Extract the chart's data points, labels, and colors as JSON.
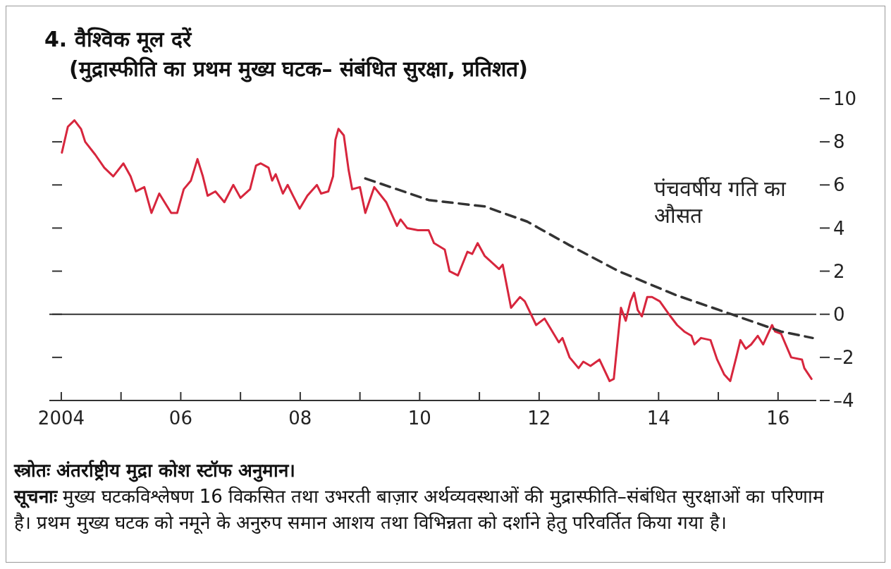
{
  "chart_data": {
    "type": "line",
    "title": "4. वैश्विक मूल दरें",
    "subtitle": "(मुद्रास्फीति का प्रथम मुख्य घटक– संबंधित सुरक्षा, प्रतिशत)",
    "annotations": [
      "स्त्रोतः अंतर्राष्ट्रीय मुद्रा कोश स्टॉफ अनुमान।",
      "सूचनाः मुख्य घटकविश्लेषण 16 विकसित तथा उभरती बाज़ार अर्थव्यवस्थाओं की मुद्रास्फीति–संबंधित सुरक्षाओं का परिणाम है। प्रथम मुख्य घटक को नमूने के अनुरुप समान आशय तथा विभिन्नता को दर्शाने हेतु परिवर्तित किया गया है।"
    ],
    "xlim": [
      2003.8,
      2016.64
    ],
    "xticks": [
      {
        "value": 2004,
        "label": "2004"
      },
      {
        "value": 2005,
        "label": null
      },
      {
        "value": 2006,
        "label": "06"
      },
      {
        "value": 2007,
        "label": null
      },
      {
        "value": 2008,
        "label": "08"
      },
      {
        "value": 2009,
        "label": null
      },
      {
        "value": 2010,
        "label": "10"
      },
      {
        "value": 2011,
        "label": null
      },
      {
        "value": 2012,
        "label": "12"
      },
      {
        "value": 2013,
        "label": null
      },
      {
        "value": 2014,
        "label": "14"
      },
      {
        "value": 2015,
        "label": null
      },
      {
        "value": 2016,
        "label": "16"
      }
    ],
    "ylim": [
      -4,
      10
    ],
    "yticks": [
      10,
      8,
      6,
      4,
      2,
      0,
      {
        "value": -2,
        "label": "–2"
      },
      {
        "value": -4,
        "label": "–4"
      }
    ],
    "ref_lines": [
      {
        "axis": "y",
        "value": 0,
        "color": "#333333"
      }
    ],
    "series": [
      {
        "color": "#d7263d",
        "line_style": "solid",
        "x": [
          2004.01,
          2004.11,
          2004.22,
          2004.33,
          2004.4,
          2004.57,
          2004.72,
          2004.87,
          2005.04,
          2005.16,
          2005.25,
          2005.39,
          2005.51,
          2005.64,
          2005.84,
          2005.94,
          2006.05,
          2006.17,
          2006.28,
          2006.37,
          2006.45,
          2006.58,
          2006.73,
          2006.88,
          2007.0,
          2007.16,
          2007.26,
          2007.34,
          2007.47,
          2007.53,
          2007.59,
          2007.71,
          2007.79,
          2007.88,
          2007.99,
          2008.12,
          2008.28,
          2008.35,
          2008.47,
          2008.55,
          2008.59,
          2008.64,
          2008.73,
          2008.81,
          2008.87,
          2009.0,
          2009.09,
          2009.24,
          2009.44,
          2009.62,
          2009.68,
          2009.79,
          2009.97,
          2010.15,
          2010.24,
          2010.42,
          2010.5,
          2010.64,
          2010.8,
          2010.88,
          2010.97,
          2011.09,
          2011.33,
          2011.39,
          2011.53,
          2011.68,
          2011.76,
          2011.95,
          2012.09,
          2012.33,
          2012.39,
          2012.51,
          2012.66,
          2012.74,
          2012.86,
          2013.01,
          2013.18,
          2013.25,
          2013.37,
          2013.45,
          2013.53,
          2013.59,
          2013.65,
          2013.72,
          2013.81,
          2013.89,
          2014.02,
          2014.2,
          2014.31,
          2014.43,
          2014.55,
          2014.6,
          2014.71,
          2014.87,
          2014.98,
          2015.1,
          2015.2,
          2015.3,
          2015.37,
          2015.46,
          2015.55,
          2015.66,
          2015.75,
          2015.9,
          2015.95,
          2016.05,
          2016.22,
          2016.4,
          2016.44,
          2016.56
        ],
        "values": [
          7.5,
          8.7,
          9.0,
          8.6,
          8.0,
          7.4,
          6.8,
          6.4,
          7.0,
          6.4,
          5.7,
          5.9,
          4.7,
          5.6,
          4.7,
          4.7,
          5.8,
          6.2,
          7.2,
          6.4,
          5.5,
          5.7,
          5.2,
          6.0,
          5.4,
          5.8,
          6.9,
          7.0,
          6.8,
          6.2,
          6.5,
          5.6,
          6.0,
          5.5,
          4.9,
          5.5,
          6.0,
          5.6,
          5.7,
          6.4,
          8.1,
          8.6,
          8.3,
          6.7,
          5.8,
          5.9,
          4.7,
          5.9,
          5.2,
          4.1,
          4.4,
          4.0,
          3.9,
          3.9,
          3.3,
          3.0,
          2.0,
          1.8,
          2.9,
          2.8,
          3.3,
          2.7,
          2.1,
          2.3,
          0.3,
          0.8,
          0.6,
          -0.5,
          -0.2,
          -1.3,
          -1.1,
          -2.0,
          -2.5,
          -2.2,
          -2.4,
          -2.1,
          -3.1,
          -3.0,
          0.3,
          -0.3,
          0.6,
          1.0,
          0.2,
          -0.1,
          0.8,
          0.8,
          0.6,
          -0.1,
          -0.5,
          -0.8,
          -1.0,
          -1.4,
          -1.1,
          -1.2,
          -2.1,
          -2.8,
          -3.1,
          -2.0,
          -1.2,
          -1.6,
          -1.4,
          -1.0,
          -1.4,
          -0.5,
          -0.8,
          -0.9,
          -2.0,
          -2.1,
          -2.5,
          -3.0
        ]
      },
      {
        "name": "पंचवर्षीय गति का औसत",
        "color": "#333333",
        "line_style": "dashed",
        "x": [
          2009.09,
          2010.15,
          2011.09,
          2011.8,
          2012.51,
          2013.33,
          2014.28,
          2015.22,
          2016.05,
          2016.58
        ],
        "values": [
          6.3,
          5.3,
          5.0,
          4.3,
          3.2,
          2.0,
          0.9,
          0.0,
          -0.8,
          -1.1
        ]
      }
    ]
  }
}
